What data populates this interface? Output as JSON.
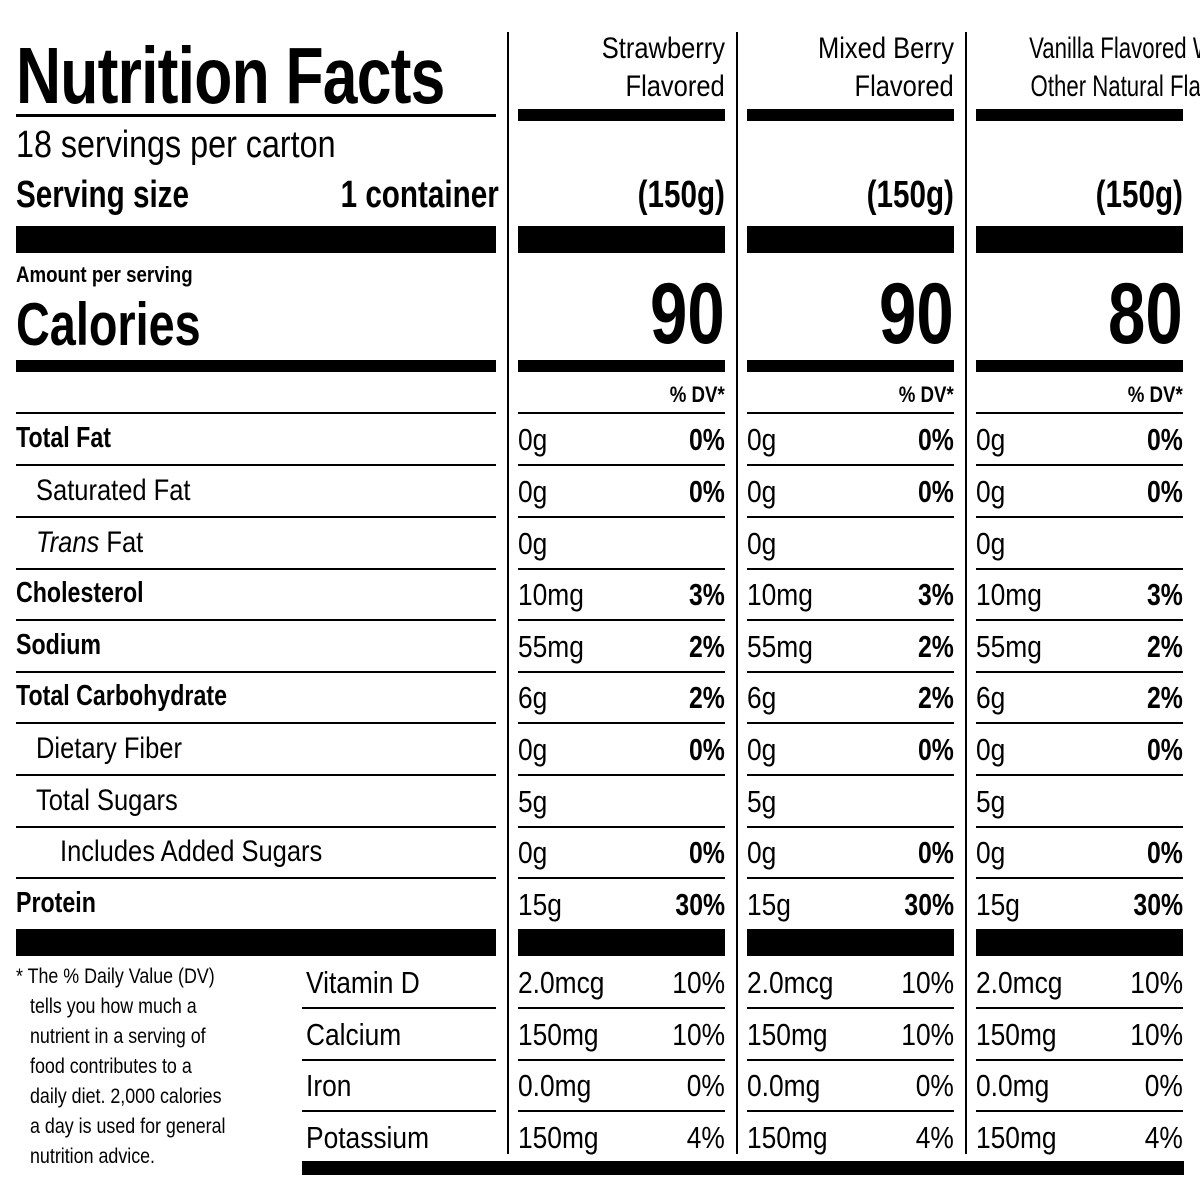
{
  "title": "Nutrition Facts",
  "servings_per_container": "18 servings per carton",
  "serving_size_label": "Serving size",
  "serving_size_value": "1 container",
  "amount_per_serving": "Amount per serving",
  "calories_label": "Calories",
  "dv_header": "% DV*",
  "columns": [
    {
      "name_line1": "Strawberry",
      "name_line2": "Flavored",
      "serving": "(150g)",
      "calories": "90",
      "values": [
        "0g",
        "0g",
        "0g",
        "10mg",
        "55mg",
        "6g",
        "0g",
        "5g",
        "0g",
        "15g"
      ],
      "dv": [
        "0%",
        "0%",
        "",
        "3%",
        "2%",
        "2%",
        "0%",
        "",
        "0%",
        "30%"
      ],
      "vitamins": [
        "2.0mcg",
        "150mg",
        "0.0mg",
        "150mg"
      ],
      "vitamins_dv": [
        "10%",
        "10%",
        "0%",
        "4%"
      ]
    },
    {
      "name_line1": "Mixed Berry",
      "name_line2": "Flavored",
      "serving": "(150g)",
      "calories": "90",
      "values": [
        "0g",
        "0g",
        "0g",
        "10mg",
        "55mg",
        "6g",
        "0g",
        "5g",
        "0g",
        "15g"
      ],
      "dv": [
        "0%",
        "0%",
        "",
        "3%",
        "2%",
        "2%",
        "0%",
        "",
        "0%",
        "30%"
      ],
      "vitamins": [
        "2.0mcg",
        "150mg",
        "0.0mg",
        "150mg"
      ],
      "vitamins_dv": [
        "10%",
        "10%",
        "0%",
        "4%"
      ]
    },
    {
      "name_line1": "Vanilla Flavored With",
      "name_line2": "Other Natural Flavors",
      "serving": "(150g)",
      "calories": "80",
      "values": [
        "0g",
        "0g",
        "0g",
        "10mg",
        "55mg",
        "6g",
        "0g",
        "5g",
        "0g",
        "15g"
      ],
      "dv": [
        "0%",
        "0%",
        "",
        "3%",
        "2%",
        "2%",
        "0%",
        "",
        "0%",
        "30%"
      ],
      "vitamins": [
        "2.0mcg",
        "150mg",
        "0.0mg",
        "150mg"
      ],
      "vitamins_dv": [
        "10%",
        "10%",
        "0%",
        "4%"
      ]
    }
  ],
  "nutrients": [
    {
      "label": "Total Fat"
    },
    {
      "label": "Saturated Fat"
    },
    {
      "label_italic": "Trans",
      "label": " Fat"
    },
    {
      "label": "Cholesterol"
    },
    {
      "label": "Sodium"
    },
    {
      "label": "Total Carbohydrate"
    },
    {
      "label": "Dietary Fiber"
    },
    {
      "label": "Total Sugars"
    },
    {
      "label": "Includes Added Sugars"
    },
    {
      "label": "Protein"
    }
  ],
  "vitamins": [
    "Vitamin D",
    "Calcium",
    "Iron",
    "Potassium"
  ],
  "footnote": [
    "* The % Daily Value (DV)",
    "tells you how much a",
    "nutrient in a serving of",
    "food contributes to a",
    "daily diet. 2,000 calories",
    "a day is used for general",
    "nutrition advice."
  ]
}
